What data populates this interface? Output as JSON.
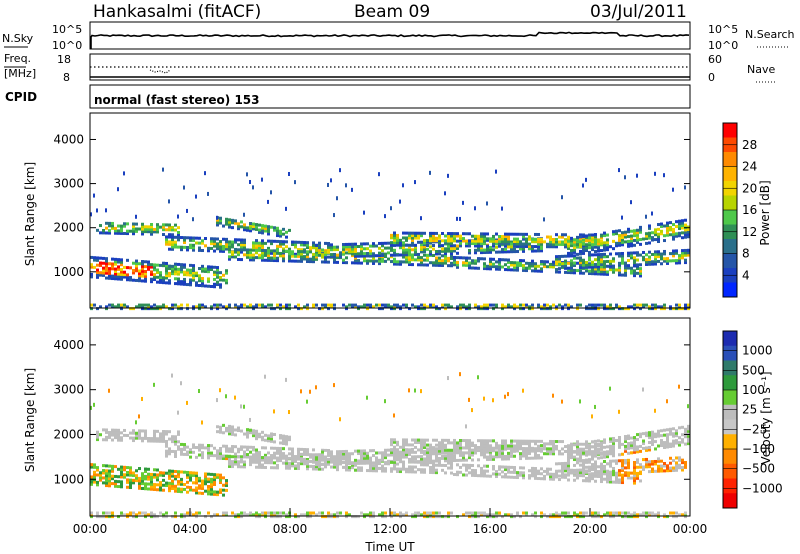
{
  "header": {
    "station": "Hankasalmi (fitACF)",
    "beam": "Beam 09",
    "date": "03/Jul/2011"
  },
  "top_panels": {
    "nsky_label": "N.Sky",
    "nsearch_label": "N.Search",
    "nsky_ticks": [
      "10^5",
      "10^0"
    ],
    "nsearch_ticks": [
      "10^5",
      "10^0"
    ],
    "freq_label_1": "Freq.",
    "freq_label_2": "[MHz]",
    "freq_ticks": [
      "18",
      "8"
    ],
    "nave_label": "Nave",
    "nave_ticks": [
      "60",
      "0"
    ],
    "cpid_label": "CPID",
    "cpid_text": "normal (fast stereo) 153"
  },
  "chart_data": [
    {
      "type": "heatmap",
      "name": "power",
      "ylabel": "Slant Range [km]",
      "xlabel": "Time UT",
      "y_ticks": [
        "4000",
        "3000",
        "2000",
        "1000"
      ],
      "ylim": [
        180,
        4600
      ],
      "x_ticks": [
        "00:00",
        "04:00",
        "08:00",
        "12:00",
        "16:00",
        "20:00",
        "00:00"
      ],
      "xlim_hours": [
        0,
        24
      ],
      "colorbar": {
        "label": "Power [dB]",
        "ticks": [
          "28",
          "24",
          "20",
          "16",
          "12",
          "8",
          "4"
        ],
        "colors": [
          "#ff0000",
          "#ff4a00",
          "#ff8a00",
          "#ffb300",
          "#f2d400",
          "#b8d400",
          "#4ec84a",
          "#2f8f56",
          "#2a6f8a",
          "#2455a8",
          "#1a3fbf",
          "#0026ff"
        ]
      }
    },
    {
      "type": "heatmap",
      "name": "velocity",
      "ylabel": "Slant Range [km]",
      "xlabel": "Time UT",
      "y_ticks": [
        "4000",
        "3000",
        "2000",
        "1000"
      ],
      "ylim": [
        180,
        4600
      ],
      "x_ticks": [
        "00:00",
        "04:00",
        "08:00",
        "12:00",
        "16:00",
        "20:00",
        "00:00"
      ],
      "xlim_hours": [
        0,
        24
      ],
      "colorbar": {
        "label": "Velocity [m s⁻¹]",
        "ticks": [
          "1000",
          "500",
          "100",
          "25",
          "−25",
          "−100",
          "−500",
          "−1000"
        ],
        "colors": [
          "#1c2bb0",
          "#2a4fb8",
          "#2f7a6a",
          "#2e9a3c",
          "#66cc33",
          "#bdbdbd",
          "#c7c7c7",
          "#ffb000",
          "#ff8a00",
          "#ff5a00",
          "#ff2200",
          "#ee0000"
        ]
      }
    }
  ]
}
